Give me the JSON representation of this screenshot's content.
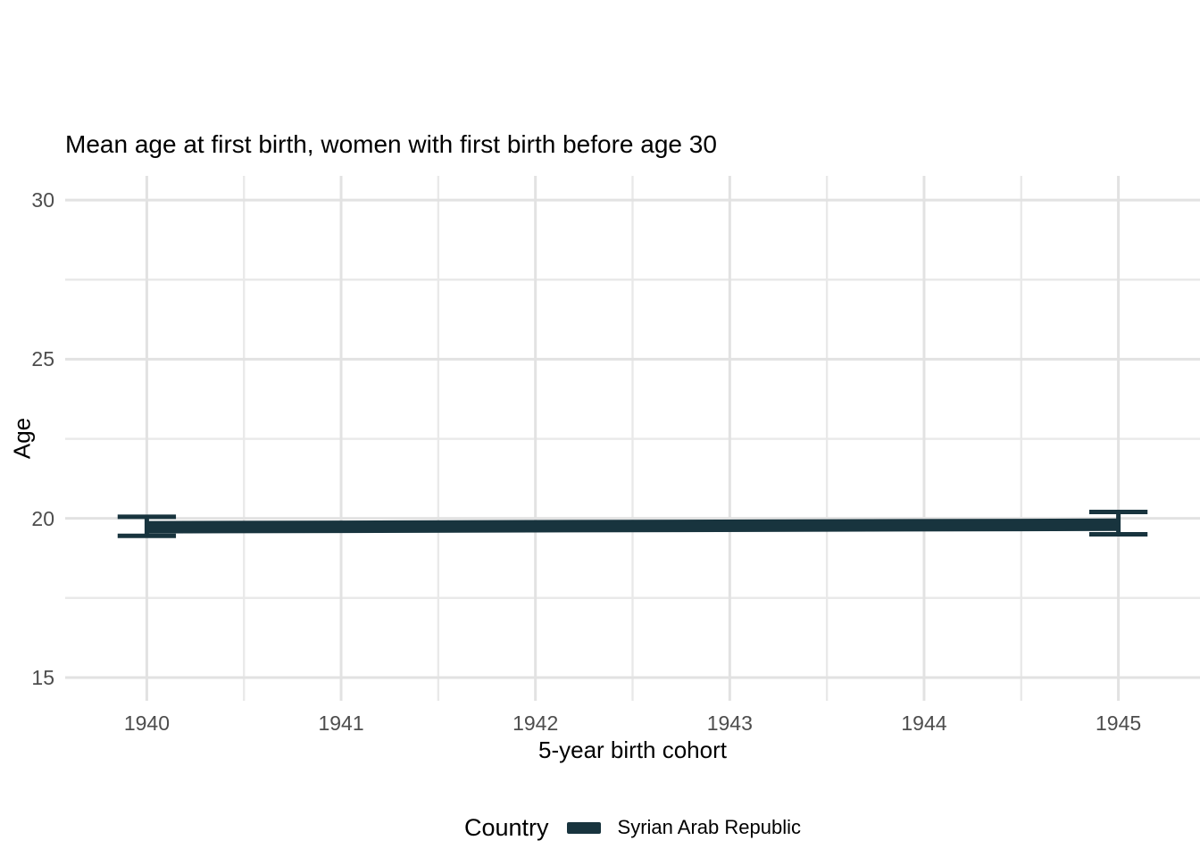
{
  "chart_data": {
    "type": "line",
    "title": "Mean age at first birth, women with first birth before age 30",
    "xlabel": "5-year birth cohort",
    "ylabel": "Age",
    "legend_title": "Country",
    "legend_position": "bottom",
    "grid": "major+minor",
    "x": [
      1940,
      1945
    ],
    "series": [
      {
        "name": "Syrian Arab Republic",
        "color": "#18343e",
        "means": [
          19.72,
          19.8
        ],
        "ci_lower": [
          19.45,
          19.5
        ],
        "ci_upper": [
          20.05,
          20.2
        ]
      }
    ],
    "x_ticks": [
      1940,
      1941,
      1942,
      1943,
      1944,
      1945
    ],
    "y_ticks": [
      15,
      20,
      25,
      30
    ],
    "x_range": [
      1939.58,
      1945.42
    ],
    "y_range": [
      14.27,
      30.76
    ],
    "error_bar_cap_half_width": 0.15
  },
  "colors": {
    "series": "#18343e",
    "grid_major": "#e2e2e2",
    "grid_minor": "#e9e9e9",
    "tick_label": "#4d4d4d",
    "title_text": "#000000",
    "background": "#ffffff"
  }
}
